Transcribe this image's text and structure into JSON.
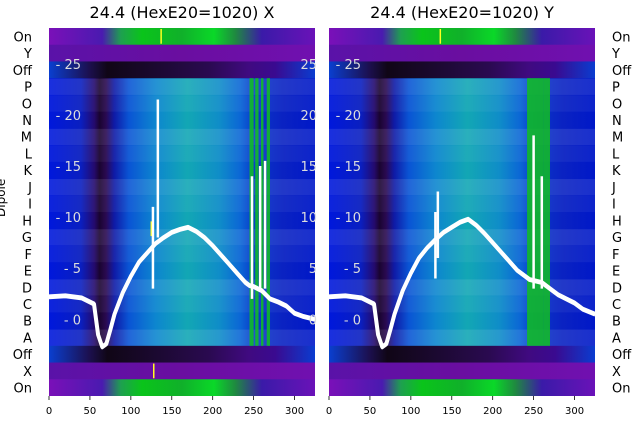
{
  "chart_data": [
    {
      "type": "heatmap",
      "title": "24.4 (HexE20=1020) X",
      "ylabel": "Dipole",
      "row_labels_top_to_bottom": [
        "On",
        "Y",
        "Off",
        "P",
        "O",
        "N",
        "M",
        "L",
        "K",
        "J",
        "I",
        "H",
        "G",
        "F",
        "E",
        "D",
        "C",
        "B",
        "A",
        "Off",
        "X",
        "On"
      ],
      "x_ticks": [
        0,
        50,
        100,
        150,
        200,
        250,
        300
      ],
      "xlim": [
        0,
        325
      ],
      "overlay_yticks": [
        25,
        20,
        15,
        10,
        5,
        0
      ],
      "overlay_ylim": [
        -7.5,
        28.5
      ],
      "overlay_line_x": [
        0,
        20,
        40,
        55,
        60,
        65,
        70,
        75,
        80,
        90,
        100,
        110,
        120,
        130,
        140,
        150,
        160,
        170,
        180,
        190,
        200,
        210,
        220,
        230,
        240,
        245,
        250,
        255,
        260,
        265,
        270,
        280,
        290,
        300,
        310,
        325
      ],
      "overlay_line_y": [
        2.2,
        2.3,
        2.1,
        1.5,
        -1.5,
        -2.7,
        -2.4,
        -1.0,
        0.5,
        2.6,
        4.2,
        5.6,
        6.5,
        7.4,
        8.0,
        8.5,
        8.8,
        9.0,
        8.6,
        8.0,
        7.2,
        6.3,
        5.4,
        4.5,
        3.6,
        3.3,
        3.2,
        3.0,
        2.8,
        2.4,
        2.0,
        1.7,
        1.3,
        0.6,
        0.3,
        0.0
      ],
      "spikes": [
        {
          "x": 127,
          "y_from": 3,
          "y_to": 11
        },
        {
          "x": 133,
          "y_from": 8,
          "y_to": 21.5
        },
        {
          "x": 248,
          "y_from": 2,
          "y_to": 14
        },
        {
          "x": 258,
          "y_from": 3,
          "y_to": 15
        },
        {
          "x": 264,
          "y_from": 3,
          "y_to": 15.5
        }
      ],
      "column_profile_x": [
        0,
        40,
        55,
        62,
        70,
        80,
        100,
        130,
        170,
        210,
        240,
        250,
        260,
        270,
        285,
        300,
        325
      ],
      "green_bands_x": [
        [
          245,
          250
        ],
        [
          252,
          256
        ],
        [
          259,
          262
        ],
        [
          266,
          270
        ]
      ],
      "extra_bands": {
        "top_on_green_x": [
          75,
          220
        ],
        "bottom_on_green_x": [
          80,
          230
        ],
        "off_dark_x": [
          70,
          200
        ]
      },
      "yellow_marks": [
        {
          "x": 137,
          "row": "On"
        },
        {
          "x": 128,
          "row": "X"
        },
        {
          "x": 125,
          "row": "H"
        }
      ]
    },
    {
      "type": "heatmap",
      "title": "24.4 (HexE20=1020) Y",
      "ylabel": "",
      "row_labels_top_to_bottom": [
        "On",
        "Y",
        "Off",
        "P",
        "O",
        "N",
        "M",
        "L",
        "K",
        "J",
        "I",
        "H",
        "G",
        "F",
        "E",
        "D",
        "C",
        "B",
        "A",
        "Off",
        "X",
        "On"
      ],
      "x_ticks": [
        0,
        50,
        100,
        150,
        200,
        250,
        300
      ],
      "xlim": [
        0,
        325
      ],
      "overlay_yticks": [
        25,
        20,
        15,
        10,
        5,
        0
      ],
      "overlay_ylim": [
        -7.5,
        28.5
      ],
      "overlay_line_x": [
        0,
        20,
        40,
        55,
        60,
        65,
        70,
        75,
        80,
        90,
        100,
        110,
        120,
        130,
        140,
        150,
        160,
        170,
        180,
        190,
        200,
        210,
        220,
        230,
        240,
        245,
        250,
        260,
        270,
        280,
        290,
        300,
        310,
        325
      ],
      "overlay_line_y": [
        2.2,
        2.3,
        2.1,
        1.5,
        -1.5,
        -2.7,
        -2.4,
        -1.0,
        0.5,
        2.8,
        4.5,
        6.0,
        7.0,
        7.8,
        8.5,
        9.0,
        9.5,
        9.8,
        9.2,
        8.4,
        7.5,
        6.6,
        5.7,
        4.8,
        4.2,
        3.9,
        3.8,
        3.6,
        3.0,
        2.4,
        2.0,
        1.6,
        1.0,
        0.5
      ],
      "spikes": [
        {
          "x": 130,
          "y_from": 4,
          "y_to": 10.5
        },
        {
          "x": 133,
          "y_from": 6,
          "y_to": 12.5
        },
        {
          "x": 250,
          "y_from": 3,
          "y_to": 18
        },
        {
          "x": 260,
          "y_from": 3,
          "y_to": 14
        }
      ],
      "column_profile_x": [
        0,
        40,
        55,
        62,
        70,
        80,
        100,
        130,
        170,
        210,
        240,
        250,
        260,
        270,
        285,
        300,
        325
      ],
      "green_bands_x": [
        [
          242,
          262
        ],
        [
          262,
          270
        ]
      ],
      "extra_bands": {
        "top_on_green_x": [
          50,
          300
        ],
        "bottom_on_green_x": [
          90,
          250
        ],
        "off_dark_x": [
          50,
          220
        ]
      },
      "yellow_marks": [
        {
          "x": 136,
          "row": "On"
        }
      ]
    }
  ]
}
